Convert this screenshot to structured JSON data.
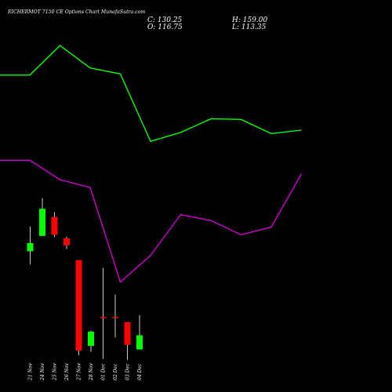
{
  "header": {
    "title": "EICHERMOT 7150  CE Options  Chart MunafaSutra.com",
    "close_label": "C: 130.25",
    "open_label": "O: 116.75",
    "high_label": "H: 159.00",
    "low_label": "L: 113.35"
  },
  "colors": {
    "background": "#000000",
    "up": "#00ff00",
    "down": "#ff0000",
    "upper_band": "#00ff00",
    "lower_band": "#cc00cc",
    "wick": "#ffffff"
  },
  "chart_data": {
    "type": "candlestick",
    "x": [
      "21 Nov",
      "24 Nov",
      "25 Nov",
      "26 Nov",
      "27 Nov",
      "28 Nov",
      "01 Dec",
      "02 Dec",
      "03 Dec",
      "04 Dec"
    ],
    "candles": [
      {
        "open": 120,
        "close": 134,
        "high": 162,
        "low": 98
      },
      {
        "open": 146,
        "close": 192,
        "high": 210,
        "low": 146
      },
      {
        "open": 178,
        "close": 148,
        "high": 186,
        "low": 144
      },
      {
        "open": 142,
        "close": 130,
        "high": 145,
        "low": 124
      },
      {
        "open": 105,
        "close": -48,
        "high": 105,
        "low": -56
      },
      {
        "open": -40,
        "close": -16,
        "high": -14,
        "low": -50
      },
      {
        "open": 8,
        "close": 8,
        "high": 92,
        "low": -62
      },
      {
        "open": 8,
        "close": 8,
        "high": 47,
        "low": -26
      },
      {
        "open": 0,
        "close": -38,
        "high": 0,
        "low": -64
      },
      {
        "open": -46,
        "close": -22,
        "high": 12,
        "low": -46
      }
    ],
    "upper_band": [
      418,
      418,
      468,
      430,
      420,
      306,
      321,
      344,
      343,
      319,
      325
    ],
    "lower_band": [
      274,
      274,
      241,
      228,
      68,
      113,
      182,
      172,
      148,
      161,
      251
    ],
    "ylim": [
      -118,
      545
    ]
  }
}
